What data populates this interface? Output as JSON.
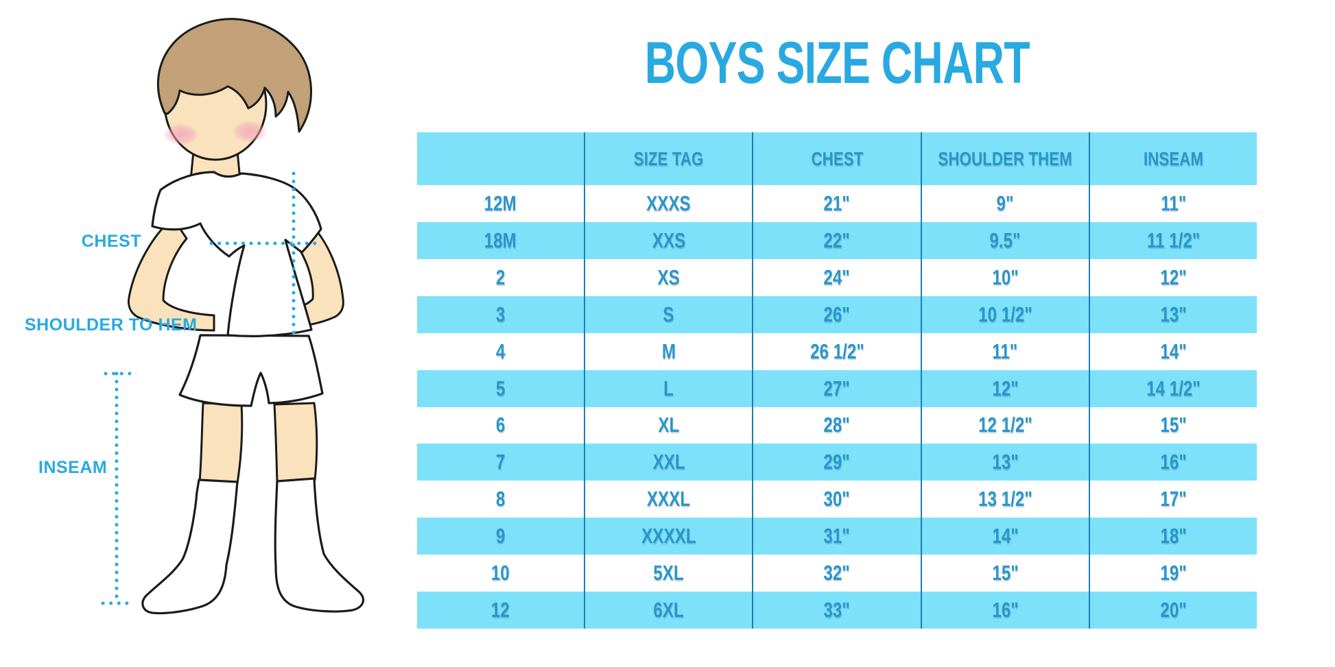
{
  "title": "BOYS SIZE CHART",
  "chart_data": {
    "type": "table",
    "title": "BOYS SIZE CHART",
    "columns": [
      "",
      "SIZE TAG",
      "CHEST",
      "SHOULDER THEM",
      "INSEAM"
    ],
    "rows": [
      [
        "12M",
        "XXXS",
        "21\"",
        "9\"",
        "11\""
      ],
      [
        "18M",
        "XXS",
        "22\"",
        "9.5\"",
        "11 1/2\""
      ],
      [
        "2",
        "XS",
        "24\"",
        "10\"",
        "12\""
      ],
      [
        "3",
        "S",
        "26\"",
        "10 1/2\"",
        "13\""
      ],
      [
        "4",
        "M",
        "26 1/2\"",
        "11\"",
        "14\""
      ],
      [
        "5",
        "L",
        "27\"",
        "12\"",
        "14 1/2\""
      ],
      [
        "6",
        "XL",
        "28\"",
        "12 1/2\"",
        "15\""
      ],
      [
        "7",
        "XXL",
        "29\"",
        "13\"",
        "16\""
      ],
      [
        "8",
        "XXXL",
        "30\"",
        "13 1/2\"",
        "17\""
      ],
      [
        "9",
        "XXXXL",
        "31\"",
        "14\"",
        "18\""
      ],
      [
        "10",
        "5XL",
        "32\"",
        "15\"",
        "19\""
      ],
      [
        "12",
        "6XL",
        "33\"",
        "16\"",
        "20\""
      ]
    ],
    "annotations": [
      "CHEST",
      "SHOULDER TO HEM",
      "INSEAM"
    ],
    "layout": {
      "alternating_rows": "white/cyan",
      "gridlines": "vertical only"
    }
  },
  "diagram": {
    "labels": {
      "chest": "CHEST",
      "shoulder_to_hem": "SHOULDER TO HEM",
      "inseam": "INSEAM"
    }
  },
  "colors": {
    "accent_blue": "#29A9E1",
    "table_text": "#2996CB",
    "row_cyan": "#7DE2F9",
    "divider_blue": "#1F7CB4",
    "skin": "#FAE3BC",
    "hair_brown": "#C2A178",
    "blush_pink": "#F2A3BC"
  }
}
